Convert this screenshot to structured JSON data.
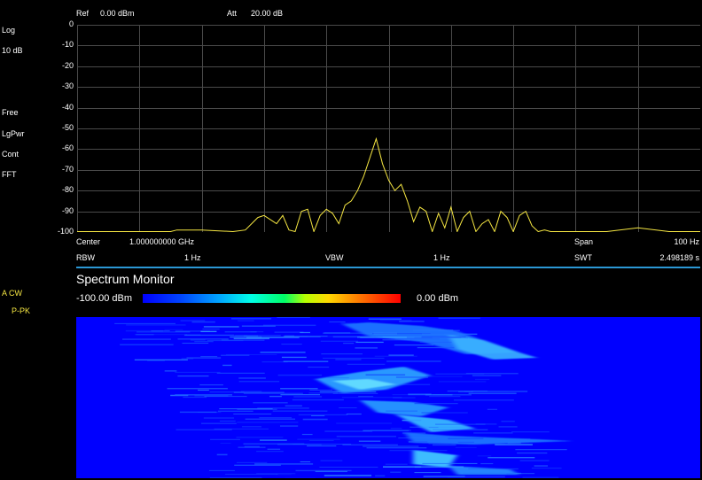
{
  "header": {
    "ref_label": "Ref",
    "ref_value": "0.00 dBm",
    "att_label": "Att",
    "att_value": "20.00 dB"
  },
  "left_panel": {
    "scale_type": "Log",
    "scale_div": "10 dB",
    "trigger": "Free",
    "avg_type": "LgPwr",
    "sweep_mode": "Cont",
    "sweep_type": "FFT",
    "trace_info": "A CW",
    "detector": "P-PK"
  },
  "y_axis_ticks": [
    "0",
    "-10",
    "-20",
    "-30",
    "-40",
    "-50",
    "-60",
    "-70",
    "-80",
    "-90",
    "-100"
  ],
  "footer": {
    "center_label": "Center",
    "center_value": "1.000000000 GHz",
    "span_label": "Span",
    "span_value": "100 Hz",
    "rbw_label": "RBW",
    "rbw_value": "1 Hz",
    "vbw_label": "VBW",
    "vbw_value": "1 Hz",
    "swt_label": "SWT",
    "swt_value": "2.498189 s"
  },
  "spectrum_monitor": {
    "title": "Spectrum Monitor",
    "min_label": "-100.00 dBm",
    "max_label": "0.00 dBm"
  },
  "colors": {
    "trace": "#f5e642",
    "grid": "#4a4a4a",
    "separator": "#2b97d4",
    "waterfall_base": "#0000ff"
  },
  "chart_data": {
    "type": "line",
    "ylim": [
      -100,
      0
    ],
    "xlim_hz": [
      -50,
      50
    ],
    "grid": true,
    "series": [
      {
        "x": [
          -50,
          -35,
          -34,
          -30,
          -25,
          -23,
          -21,
          -20,
          -18,
          -17,
          -16,
          -15,
          -14,
          -13,
          -12,
          -11,
          -10,
          -9,
          -8,
          -7,
          -6,
          -5,
          -4,
          -3,
          -2,
          -1,
          0,
          1,
          2,
          3,
          4,
          5,
          6,
          7,
          8,
          9,
          10,
          11,
          12,
          13,
          14,
          15,
          16,
          17,
          18,
          19,
          20,
          21,
          22,
          23,
          24,
          25,
          26,
          28,
          30,
          35,
          40,
          45,
          50
        ],
        "y": [
          -100,
          -100,
          -99,
          -99,
          -100,
          -99,
          -93,
          -92,
          -96,
          -92,
          -99,
          -100,
          -90,
          -89,
          -100,
          -92,
          -89,
          -91,
          -96,
          -87,
          -85,
          -80,
          -73,
          -64,
          -55,
          -67,
          -75,
          -80,
          -77,
          -85,
          -95,
          -88,
          -90,
          -100,
          -91,
          -98,
          -88,
          -100,
          -93,
          -90,
          -100,
          -96,
          -94,
          -100,
          -90,
          -93,
          -100,
          -92,
          -90,
          -97,
          -100,
          -99,
          -100,
          -100,
          -100,
          -100,
          -98,
          -100,
          -100
        ]
      }
    ]
  }
}
